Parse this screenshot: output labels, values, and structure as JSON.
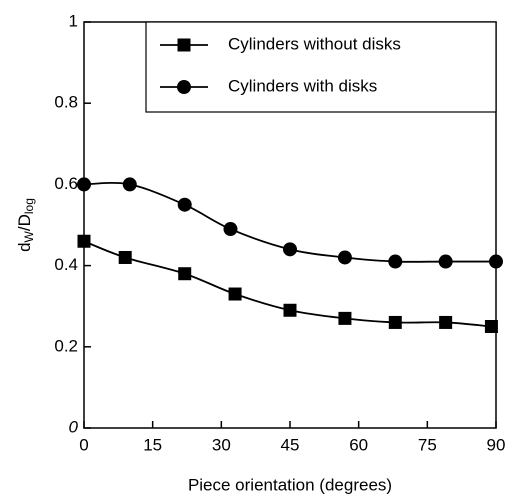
{
  "chart_data": {
    "type": "line",
    "xlabel": "Piece orientation (degrees)",
    "ylabel": [
      "d",
      "W",
      "/D",
      "log"
    ],
    "xlim": [
      0,
      90
    ],
    "xticks": [
      0,
      15,
      30,
      45,
      60,
      75,
      90
    ],
    "ylim": [
      0,
      1
    ],
    "yticks": [
      0,
      0.2,
      0.4,
      0.6,
      0.8,
      1
    ],
    "legend": "upper right",
    "series": [
      {
        "name": "Cylinders without disks",
        "color": "#000000",
        "marker": "square",
        "x": [
          0,
          9,
          22,
          33,
          45,
          57,
          68,
          79,
          89
        ],
        "values": [
          0.46,
          0.42,
          0.38,
          0.33,
          0.29,
          0.27,
          0.26,
          0.26,
          0.25
        ]
      },
      {
        "name": "Cylinders with disks",
        "color": "#000000",
        "marker": "circle",
        "x": [
          0,
          10,
          22,
          32,
          45,
          57,
          68,
          79,
          90
        ],
        "values": [
          0.6,
          0.6,
          0.55,
          0.49,
          0.44,
          0.42,
          0.41,
          0.41,
          0.41
        ]
      }
    ]
  }
}
